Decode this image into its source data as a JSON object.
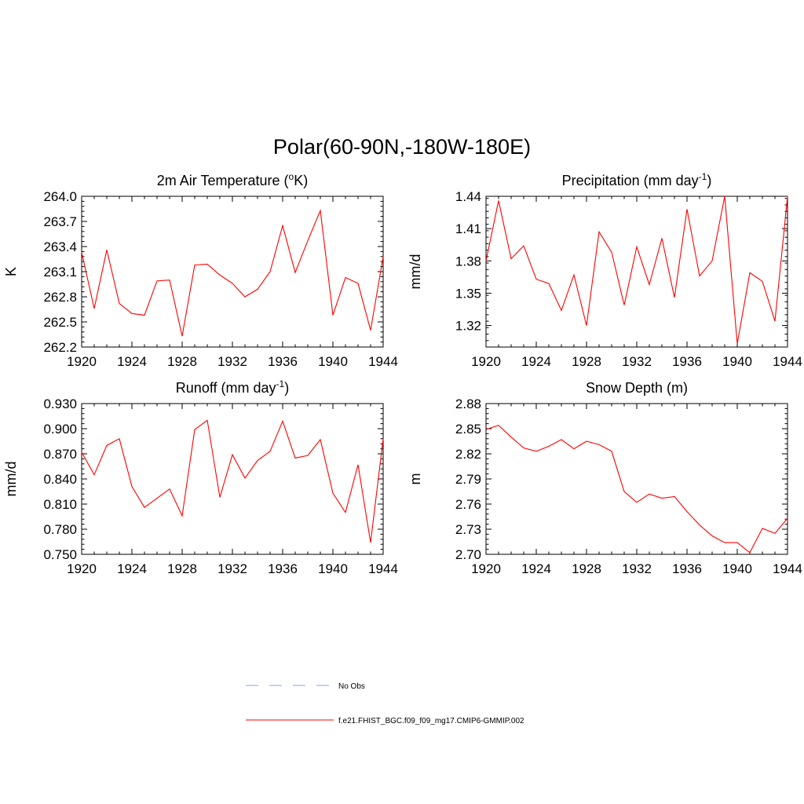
{
  "main_title": "Polar(60-90N,-180W-180E)",
  "legend": {
    "items": [
      {
        "label": "No Obs",
        "color": "#9999ff",
        "dash": true
      },
      {
        "label": "f.e21.FHIST_BGC.f09_f09_mg17.CMIP6-GMMIP.002",
        "color": "#ff0000",
        "dash": false
      }
    ]
  },
  "chart_data": [
    {
      "type": "line",
      "title": "2m Air Temperature (",
      "title_sup": "o",
      "title_after": "K)",
      "ylabel": "K",
      "xlim": [
        1920,
        1944
      ],
      "ylim": [
        262.2,
        264.0
      ],
      "xticks": [
        "1920",
        "1924",
        "1928",
        "1932",
        "1936",
        "1940",
        "1944"
      ],
      "yticks": [
        "262.2",
        "262.5",
        "262.8",
        "263.1",
        "263.4",
        "263.7",
        "264.0"
      ],
      "series": [
        {
          "color": "#ff0000",
          "x": [
            1920,
            1921,
            1922,
            1923,
            1924,
            1925,
            1926,
            1927,
            1928,
            1929,
            1930,
            1931,
            1932,
            1933,
            1934,
            1935,
            1936,
            1937,
            1938,
            1939,
            1940,
            1941,
            1942,
            1943,
            1944
          ],
          "y": [
            263.33,
            262.66,
            263.36,
            262.72,
            262.6,
            262.58,
            262.99,
            263.0,
            262.33,
            263.18,
            263.19,
            263.06,
            262.96,
            262.8,
            262.89,
            263.1,
            263.65,
            263.09,
            263.47,
            263.83,
            262.58,
            263.03,
            262.96,
            262.4,
            263.28
          ]
        }
      ]
    },
    {
      "type": "line",
      "title": "Precipitation (mm day",
      "title_sup": "-1",
      "title_after": ")",
      "ylabel": "mm/d",
      "xlim": [
        1920,
        1944
      ],
      "ylim": [
        1.3,
        1.44
      ],
      "xticks": [
        "1920",
        "1924",
        "1928",
        "1932",
        "1936",
        "1940",
        "1944"
      ],
      "yticks": [
        "1.32",
        "1.35",
        "1.38",
        "1.41",
        "1.44"
      ],
      "series": [
        {
          "color": "#ff0000",
          "x": [
            1920,
            1921,
            1922,
            1923,
            1924,
            1925,
            1926,
            1927,
            1928,
            1929,
            1930,
            1931,
            1932,
            1933,
            1935,
            1934,
            1936,
            1937,
            1938,
            1939,
            1940,
            1941,
            1942,
            1943,
            1944
          ],
          "y": [
            1.38,
            1.436,
            1.382,
            1.394,
            1.363,
            1.359,
            1.334,
            1.367,
            1.32,
            1.407,
            1.388,
            1.339,
            1.393,
            1.358,
            1.346,
            1.401,
            1.428,
            1.366,
            1.38,
            1.44,
            1.303,
            1.369,
            1.361,
            1.324,
            1.44
          ]
        }
      ]
    },
    {
      "type": "line",
      "title": "Runoff (mm day",
      "title_sup": "-1",
      "title_after": ")",
      "ylabel": "mm/d",
      "xlim": [
        1920,
        1944
      ],
      "ylim": [
        0.75,
        0.93
      ],
      "xticks": [
        "1920",
        "1924",
        "1928",
        "1932",
        "1936",
        "1940",
        "1944"
      ],
      "yticks": [
        "0.750",
        "0.780",
        "0.810",
        "0.840",
        "0.870",
        "0.900",
        "0.930"
      ],
      "series": [
        {
          "color": "#ff0000",
          "x": [
            1920,
            1921,
            1922,
            1923,
            1924,
            1925,
            1926,
            1927,
            1928,
            1929,
            1930,
            1931,
            1932,
            1933,
            1934,
            1935,
            1936,
            1937,
            1938,
            1939,
            1940,
            1941,
            1942,
            1943,
            1944
          ],
          "y": [
            0.872,
            0.845,
            0.88,
            0.888,
            0.831,
            0.806,
            0.817,
            0.828,
            0.796,
            0.899,
            0.91,
            0.818,
            0.869,
            0.841,
            0.862,
            0.873,
            0.909,
            0.865,
            0.868,
            0.887,
            0.823,
            0.8,
            0.857,
            0.764,
            0.888
          ]
        }
      ]
    },
    {
      "type": "line",
      "title": "Snow Depth (m)",
      "title_sup": "",
      "title_after": "",
      "ylabel": "m",
      "xlim": [
        1920,
        1944
      ],
      "ylim": [
        2.7,
        2.88
      ],
      "xticks": [
        "1920",
        "1924",
        "1928",
        "1932",
        "1936",
        "1940",
        "1944"
      ],
      "yticks": [
        "2.70",
        "2.73",
        "2.76",
        "2.79",
        "2.82",
        "2.85",
        "2.88"
      ],
      "series": [
        {
          "color": "#ff0000",
          "x": [
            1920,
            1921,
            1922,
            1923,
            1924,
            1925,
            1926,
            1927,
            1928,
            1929,
            1930,
            1931,
            1932,
            1933,
            1934,
            1935,
            1936,
            1937,
            1938,
            1939,
            1940,
            1941,
            1942,
            1943,
            1944
          ],
          "y": [
            2.849,
            2.854,
            2.84,
            2.827,
            2.823,
            2.829,
            2.837,
            2.826,
            2.835,
            2.831,
            2.823,
            2.775,
            2.762,
            2.772,
            2.767,
            2.769,
            2.751,
            2.735,
            2.722,
            2.714,
            2.714,
            2.702,
            2.731,
            2.725,
            2.743
          ]
        }
      ]
    }
  ]
}
